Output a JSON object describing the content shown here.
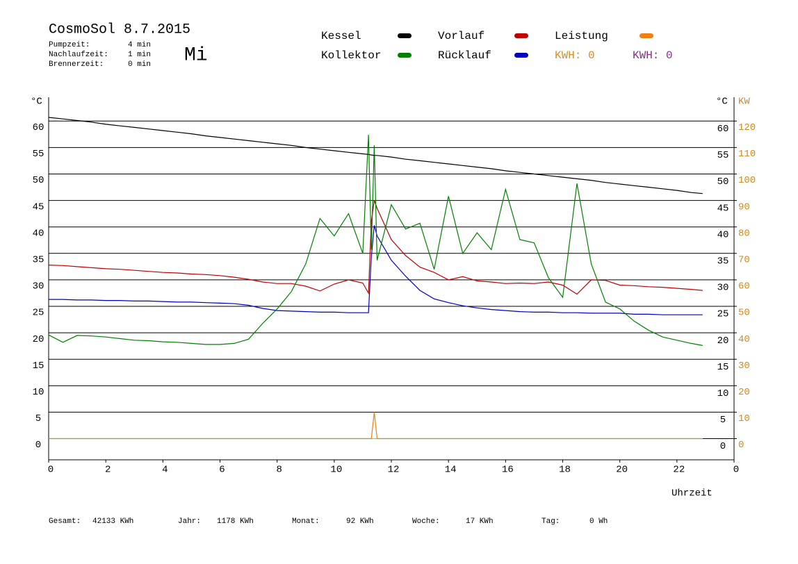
{
  "chart_data": {
    "type": "line",
    "title": "CosmoSol 8.7.2015",
    "weekday": "Mi",
    "info": [
      {
        "label": "Pumpzeit:",
        "value": "4 min"
      },
      {
        "label": "Nachlaufzeit:",
        "value": "1 min"
      },
      {
        "label": "Brennerzeit:",
        "value": "0 min"
      }
    ],
    "kwh_labels": [
      {
        "text": "KWH: 0",
        "color": "#e08a1e"
      },
      {
        "text": "KWH: 0",
        "color": "#8b2c8b"
      }
    ],
    "ylabel": "°C",
    "y2unit": "°C",
    "y2label": "KW",
    "xlabel": "Uhrzeit",
    "totals": [
      {
        "label": "Gesamt:",
        "value": "42133 KWh"
      },
      {
        "label": "Jahr:",
        "value": "1178 KWh"
      },
      {
        "label": "Monat:",
        "value": "92 KWh"
      },
      {
        "label": "Woche:",
        "value": "17 KWh"
      },
      {
        "label": "Tag:",
        "value": "0 Wh"
      }
    ],
    "x": [
      0,
      0.5,
      1,
      1.5,
      2,
      2.5,
      3,
      3.5,
      4,
      4.5,
      5,
      5.5,
      6,
      6.5,
      7,
      7.5,
      8,
      8.5,
      9,
      9.5,
      10,
      10.5,
      11,
      11.2,
      11.3,
      11.4,
      11.5,
      12,
      12.5,
      13,
      13.5,
      14,
      14.5,
      15,
      15.5,
      16,
      16.5,
      17,
      17.5,
      18,
      18.5,
      19,
      19.5,
      20,
      20.5,
      21,
      21.5,
      22,
      22.5,
      22.9
    ],
    "xlim": [
      0,
      24
    ],
    "xticks": [
      0,
      2,
      4,
      6,
      8,
      10,
      12,
      14,
      16,
      18,
      20,
      22,
      {
        "value": 24,
        "label": "0"
      }
    ],
    "ylim": [
      -4,
      64.5
    ],
    "yticks": [
      0,
      5,
      10,
      15,
      20,
      25,
      30,
      35,
      40,
      45,
      50,
      55,
      60
    ],
    "y2lim": [
      -8,
      129
    ],
    "y2ticks": [
      0,
      10,
      20,
      30,
      40,
      50,
      60,
      70,
      80,
      90,
      100,
      110,
      120
    ],
    "grid": true,
    "series": [
      {
        "name": "Kessel",
        "color": "#000000",
        "values": [
          60.7,
          60.4,
          60.1,
          59.8,
          59.4,
          59.1,
          58.8,
          58.5,
          58.2,
          57.9,
          57.6,
          57.2,
          56.9,
          56.6,
          56.3,
          56.0,
          55.7,
          55.4,
          55.0,
          54.7,
          54.4,
          54.1,
          53.8,
          53.7,
          53.6,
          53.5,
          53.5,
          53.2,
          52.8,
          52.5,
          52.2,
          51.9,
          51.6,
          51.3,
          51.0,
          50.6,
          50.3,
          50.0,
          49.7,
          49.4,
          49.1,
          48.8,
          48.4,
          48.1,
          47.8,
          47.5,
          47.2,
          46.9,
          46.5,
          46.3
        ]
      },
      {
        "name": "Kollektor",
        "color": "#008000",
        "values": [
          19.6,
          18.2,
          19.5,
          19.4,
          19.2,
          18.9,
          18.6,
          18.5,
          18.3,
          18.2,
          18.0,
          17.8,
          17.8,
          18.0,
          18.8,
          21.8,
          24.5,
          27.8,
          33.0,
          41.6,
          38.3,
          42.5,
          35.0,
          57.4,
          35.7,
          55.4,
          33.7,
          44.2,
          39.6,
          40.7,
          32.0,
          45.8,
          35.0,
          38.9,
          35.7,
          47.1,
          37.6,
          37.0,
          30.4,
          26.7,
          48.2,
          33.0,
          25.8,
          24.5,
          22.2,
          20.5,
          19.2,
          18.6,
          18.0,
          17.6
        ]
      },
      {
        "name": "Vorlauf",
        "color": "#c00000",
        "values": [
          32.8,
          32.7,
          32.5,
          32.3,
          32.1,
          32.0,
          31.8,
          31.6,
          31.4,
          31.3,
          31.1,
          31.0,
          30.8,
          30.5,
          30.1,
          29.6,
          29.3,
          29.3,
          28.8,
          27.9,
          29.2,
          30.0,
          29.4,
          27.5,
          41.0,
          45.0,
          43.5,
          37.6,
          34.6,
          32.4,
          31.4,
          30.0,
          30.6,
          29.8,
          29.6,
          29.3,
          29.4,
          29.3,
          29.6,
          29.0,
          27.3,
          30.0,
          29.9,
          29.0,
          28.9,
          28.7,
          28.6,
          28.4,
          28.2,
          28.0
        ]
      },
      {
        "name": "Rücklauf",
        "color": "#0000c0",
        "values": [
          26.3,
          26.3,
          26.2,
          26.2,
          26.1,
          26.1,
          26.0,
          26.0,
          25.9,
          25.8,
          25.8,
          25.7,
          25.6,
          25.5,
          25.2,
          24.6,
          24.2,
          24.1,
          24.0,
          23.9,
          23.9,
          23.8,
          23.8,
          23.8,
          34.3,
          40.3,
          38.3,
          33.7,
          30.7,
          28.0,
          26.4,
          25.7,
          25.1,
          24.7,
          24.4,
          24.2,
          24.0,
          23.9,
          23.9,
          23.8,
          23.8,
          23.7,
          23.7,
          23.7,
          23.5,
          23.5,
          23.4,
          23.4,
          23.4,
          23.4
        ]
      },
      {
        "name": "Leistung",
        "color": "#f08010",
        "axis": "y2",
        "values": [
          0,
          0,
          0,
          0,
          0,
          0,
          0,
          0,
          0,
          0,
          0,
          0,
          0,
          0,
          0,
          0,
          0,
          0,
          0,
          0,
          0,
          0,
          0,
          0,
          0,
          10,
          0,
          0,
          0,
          0,
          0,
          0,
          0,
          0,
          0,
          0,
          0,
          0,
          0,
          0,
          0,
          0,
          0,
          0,
          0,
          0,
          0,
          0,
          0,
          0
        ]
      },
      {
        "color": "#40e0d0",
        "values": [
          0,
          0,
          0,
          0,
          0,
          0,
          0,
          0,
          0,
          0,
          0,
          0,
          0,
          0,
          0,
          0,
          0,
          0,
          0,
          0,
          0,
          0,
          0,
          0,
          0,
          0,
          0,
          0,
          0,
          0,
          0,
          0,
          0,
          0,
          0,
          0,
          0,
          0,
          0,
          0,
          0,
          0,
          0,
          0,
          0,
          0,
          0,
          0,
          0,
          0
        ]
      }
    ]
  }
}
